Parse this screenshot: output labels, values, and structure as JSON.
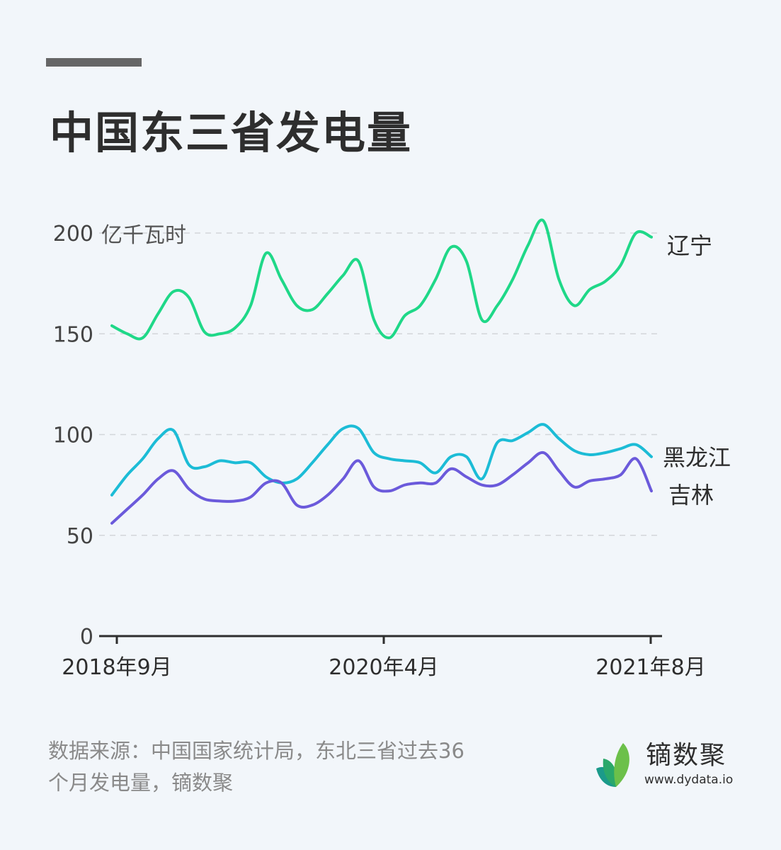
{
  "header": {
    "title": "中国东三省发电量"
  },
  "chart_data": {
    "type": "line",
    "title": "中国东三省发电量",
    "ylabel": "亿千瓦时",
    "xlabel": "",
    "ylim": [
      0,
      200
    ],
    "yticks": [
      0,
      50,
      100,
      150,
      200
    ],
    "ytick_labels": [
      "0",
      "50",
      "100",
      "150",
      "200"
    ],
    "x_tick_labels": [
      {
        "index": 0,
        "label": "2018年9月"
      },
      {
        "index": 17.5,
        "label": "2020年4月"
      },
      {
        "index": 35,
        "label": "2021年8月"
      }
    ],
    "x_start": "2018年9月",
    "x_end": "2021年8月",
    "n_points": 36,
    "grid": "horizontal dashed",
    "legend_position": "right, inline labels at line ends",
    "series": [
      {
        "name": "辽宁",
        "color": "#1fd888",
        "values": [
          154,
          150,
          148,
          160,
          171,
          168,
          151,
          150,
          153,
          164,
          190,
          177,
          164,
          162,
          170,
          179,
          186,
          157,
          148,
          159,
          164,
          177,
          193,
          186,
          157,
          164,
          177,
          194,
          206,
          177,
          164,
          172,
          176,
          184,
          200,
          198
        ]
      },
      {
        "name": "黑龙江",
        "color": "#1cbcd6",
        "values": [
          70,
          80,
          88,
          98,
          102,
          85,
          84,
          87,
          86,
          86,
          79,
          76,
          78,
          86,
          95,
          103,
          103,
          91,
          88,
          87,
          86,
          81,
          89,
          89,
          78,
          96,
          97,
          101,
          105,
          98,
          92,
          90,
          91,
          93,
          95,
          89
        ]
      },
      {
        "name": "吉林",
        "color": "#6b5adb",
        "values": [
          56,
          63,
          70,
          78,
          82,
          73,
          68,
          67,
          67,
          69,
          76,
          76,
          65,
          65,
          70,
          78,
          87,
          74,
          72,
          75,
          76,
          76,
          83,
          79,
          75,
          75,
          80,
          86,
          91,
          82,
          74,
          77,
          78,
          80,
          88,
          72
        ]
      }
    ]
  },
  "footer": {
    "source_line1": "数据来源：中国国家统计局，东北三省过去36",
    "source_line2": "个月发电量，镝数聚",
    "logo_name": "镝数聚",
    "logo_url": "www.dydata.io"
  }
}
